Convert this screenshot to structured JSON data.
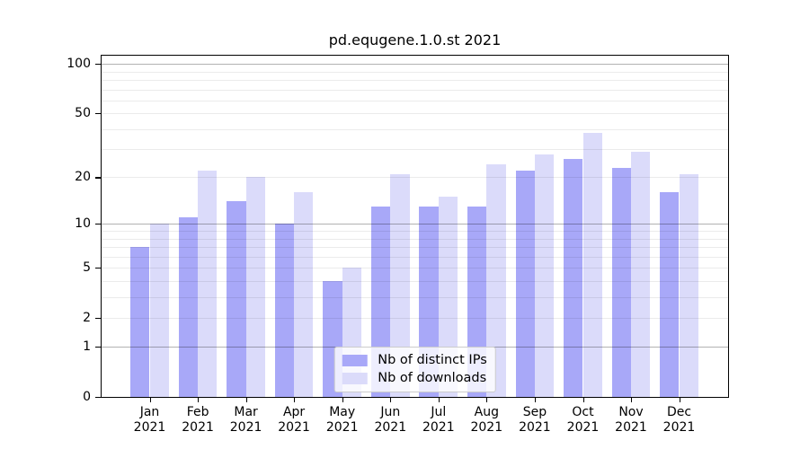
{
  "title": "pd.equgene.1.0.st 2021",
  "colors": {
    "ips_bar": "#a8a8f8",
    "downloads_bar": "#dbdbfa",
    "axis": "#000000",
    "grid_major": "rgba(0,0,0,0.30)",
    "grid_minor": "rgba(0,0,0,0.08)",
    "legend_border": "#cccccc",
    "legend_background": "rgba(255,255,255,0.8)"
  },
  "legend": {
    "items": [
      {
        "label": "Nb of distinct IPs",
        "series": "ips"
      },
      {
        "label": "Nb of downloads",
        "series": "downloads"
      }
    ]
  },
  "chart_data": {
    "type": "bar",
    "title": "pd.equgene.1.0.st 2021",
    "categories": [
      "Jan 2021",
      "Feb 2021",
      "Mar 2021",
      "Apr 2021",
      "May 2021",
      "Jun 2021",
      "Jul 2021",
      "Aug 2021",
      "Sep 2021",
      "Oct 2021",
      "Nov 2021",
      "Dec 2021"
    ],
    "series": [
      {
        "name": "Nb of distinct IPs",
        "color": "#a8a8f8",
        "values": [
          7,
          11,
          14,
          10,
          4,
          13,
          13,
          13,
          22,
          26,
          23,
          16
        ]
      },
      {
        "name": "Nb of downloads",
        "color": "#dbdbfa",
        "values": [
          10,
          22,
          20,
          16,
          5,
          21,
          15,
          24,
          28,
          38,
          29,
          21
        ]
      }
    ],
    "yscale": "log1p",
    "yticks": [
      100,
      50,
      20,
      10,
      5,
      2,
      1,
      0
    ],
    "ylim": [
      0,
      110
    ],
    "grid": "on",
    "legend_position": "lower center"
  }
}
